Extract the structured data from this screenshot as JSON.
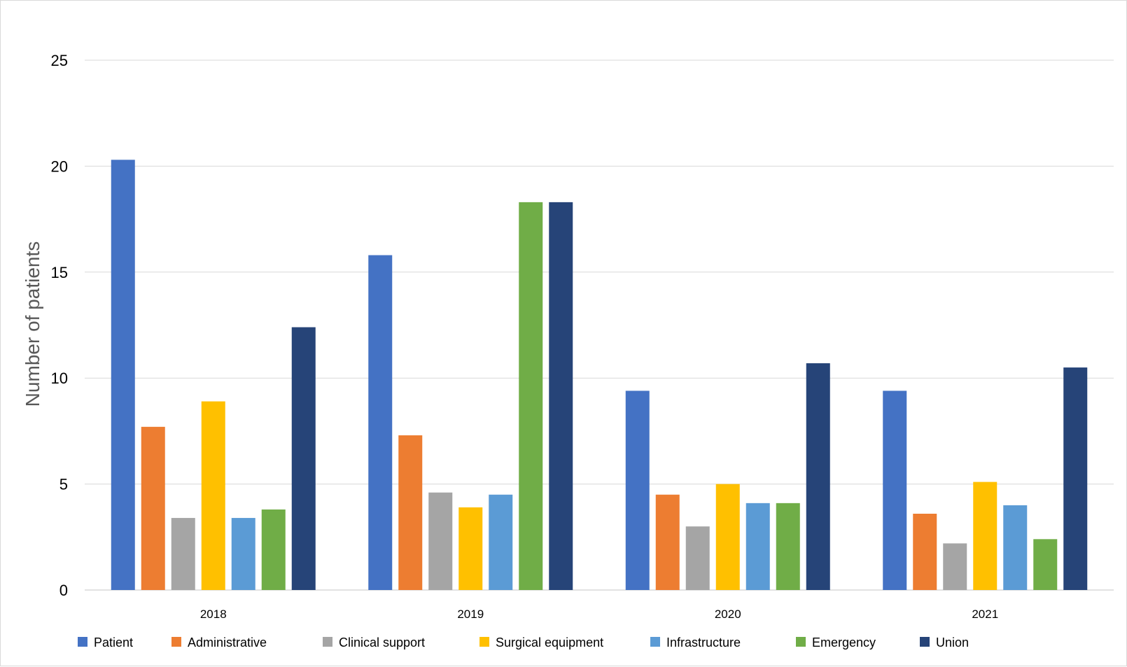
{
  "chart_data": {
    "type": "bar",
    "title": "",
    "xlabel": "",
    "ylabel": "Number of patients",
    "ylim": [
      0,
      25
    ],
    "yticks": [
      0,
      5,
      10,
      15,
      20,
      25
    ],
    "grid": true,
    "legend_position": "bottom",
    "categories": [
      "2018",
      "2019",
      "2020",
      "2021"
    ],
    "series": [
      {
        "name": "Patient",
        "color": "#4472C4",
        "values": [
          20.3,
          15.8,
          9.4,
          9.4
        ]
      },
      {
        "name": "Administrative",
        "color": "#ED7D31",
        "values": [
          7.7,
          7.3,
          4.5,
          3.6
        ]
      },
      {
        "name": "Clinical support",
        "color": "#A5A5A5",
        "values": [
          3.4,
          4.6,
          3.0,
          2.2
        ]
      },
      {
        "name": "Surgical equipment",
        "color": "#FFC000",
        "values": [
          8.9,
          3.9,
          5.0,
          5.1
        ]
      },
      {
        "name": "Infrastructure",
        "color": "#5B9BD5",
        "values": [
          3.4,
          4.5,
          4.1,
          4.0
        ]
      },
      {
        "name": "Emergency",
        "color": "#70AD47",
        "values": [
          3.8,
          18.3,
          4.1,
          2.4
        ]
      },
      {
        "name": "Union",
        "color": "#264478",
        "values": [
          12.4,
          18.3,
          10.7,
          10.5
        ]
      }
    ]
  },
  "colors": {
    "gridline": "#d9d9d9",
    "axis_title": "#595959",
    "tick_text": "#000000"
  }
}
